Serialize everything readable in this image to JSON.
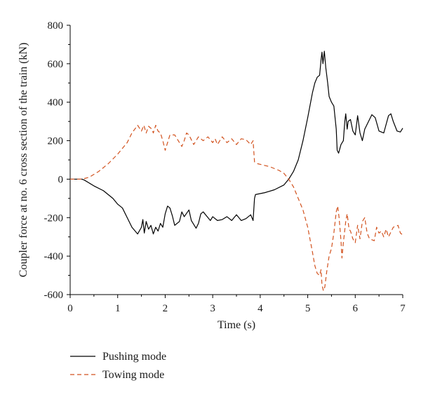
{
  "chart_data": {
    "type": "line",
    "title": "",
    "xlabel": "Time (s)",
    "ylabel": "Coupler force at no. 6 cross section of the train (kN)",
    "xlim": [
      0,
      7
    ],
    "ylim": [
      -600,
      800
    ],
    "xticks": [
      0,
      1,
      2,
      3,
      4,
      5,
      6,
      7
    ],
    "yticks": [
      -600,
      -400,
      -200,
      0,
      200,
      400,
      600,
      800
    ],
    "grid": false,
    "legend_position": "bottom-left",
    "series": [
      {
        "name": "Pushing mode",
        "color": "#000000",
        "dash": "solid",
        "points": [
          [
            0,
            0
          ],
          [
            0.25,
            0
          ],
          [
            0.3,
            -5
          ],
          [
            0.5,
            -35
          ],
          [
            0.7,
            -60
          ],
          [
            0.9,
            -100
          ],
          [
            1.0,
            -130
          ],
          [
            1.1,
            -150
          ],
          [
            1.2,
            -200
          ],
          [
            1.3,
            -250
          ],
          [
            1.42,
            -285
          ],
          [
            1.5,
            -250
          ],
          [
            1.53,
            -210
          ],
          [
            1.56,
            -280
          ],
          [
            1.6,
            -220
          ],
          [
            1.65,
            -260
          ],
          [
            1.7,
            -240
          ],
          [
            1.75,
            -285
          ],
          [
            1.8,
            -250
          ],
          [
            1.85,
            -270
          ],
          [
            1.9,
            -230
          ],
          [
            1.95,
            -250
          ],
          [
            2.0,
            -180
          ],
          [
            2.05,
            -140
          ],
          [
            2.1,
            -150
          ],
          [
            2.15,
            -190
          ],
          [
            2.2,
            -240
          ],
          [
            2.3,
            -220
          ],
          [
            2.35,
            -170
          ],
          [
            2.4,
            -195
          ],
          [
            2.5,
            -160
          ],
          [
            2.55,
            -215
          ],
          [
            2.65,
            -255
          ],
          [
            2.7,
            -230
          ],
          [
            2.75,
            -180
          ],
          [
            2.8,
            -170
          ],
          [
            2.9,
            -200
          ],
          [
            2.95,
            -215
          ],
          [
            3.0,
            -195
          ],
          [
            3.1,
            -215
          ],
          [
            3.2,
            -210
          ],
          [
            3.3,
            -195
          ],
          [
            3.4,
            -215
          ],
          [
            3.5,
            -185
          ],
          [
            3.6,
            -215
          ],
          [
            3.7,
            -205
          ],
          [
            3.8,
            -185
          ],
          [
            3.85,
            -215
          ],
          [
            3.88,
            -100
          ],
          [
            3.9,
            -80
          ],
          [
            4.1,
            -70
          ],
          [
            4.3,
            -55
          ],
          [
            4.5,
            -30
          ],
          [
            4.6,
            0
          ],
          [
            4.7,
            40
          ],
          [
            4.8,
            100
          ],
          [
            4.9,
            200
          ],
          [
            5.0,
            320
          ],
          [
            5.1,
            450
          ],
          [
            5.15,
            500
          ],
          [
            5.2,
            530
          ],
          [
            5.25,
            540
          ],
          [
            5.28,
            620
          ],
          [
            5.3,
            660
          ],
          [
            5.32,
            600
          ],
          [
            5.35,
            665
          ],
          [
            5.38,
            580
          ],
          [
            5.42,
            500
          ],
          [
            5.45,
            430
          ],
          [
            5.5,
            400
          ],
          [
            5.55,
            380
          ],
          [
            5.6,
            260
          ],
          [
            5.62,
            150
          ],
          [
            5.65,
            135
          ],
          [
            5.7,
            180
          ],
          [
            5.75,
            200
          ],
          [
            5.78,
            300
          ],
          [
            5.8,
            340
          ],
          [
            5.83,
            260
          ],
          [
            5.85,
            300
          ],
          [
            5.9,
            310
          ],
          [
            5.95,
            250
          ],
          [
            6.0,
            230
          ],
          [
            6.05,
            330
          ],
          [
            6.1,
            240
          ],
          [
            6.15,
            200
          ],
          [
            6.2,
            260
          ],
          [
            6.3,
            310
          ],
          [
            6.35,
            335
          ],
          [
            6.42,
            320
          ],
          [
            6.5,
            250
          ],
          [
            6.6,
            240
          ],
          [
            6.7,
            330
          ],
          [
            6.75,
            340
          ],
          [
            6.8,
            300
          ],
          [
            6.88,
            250
          ],
          [
            6.95,
            245
          ],
          [
            7.0,
            265
          ]
        ]
      },
      {
        "name": "Towing mode",
        "color": "#d2521e",
        "dash": "dashed",
        "points": [
          [
            0,
            0
          ],
          [
            0.25,
            0
          ],
          [
            0.4,
            10
          ],
          [
            0.6,
            40
          ],
          [
            0.8,
            80
          ],
          [
            1.0,
            130
          ],
          [
            1.1,
            160
          ],
          [
            1.2,
            190
          ],
          [
            1.3,
            240
          ],
          [
            1.42,
            280
          ],
          [
            1.5,
            250
          ],
          [
            1.55,
            280
          ],
          [
            1.6,
            240
          ],
          [
            1.65,
            275
          ],
          [
            1.72,
            260
          ],
          [
            1.75,
            240
          ],
          [
            1.8,
            280
          ],
          [
            1.85,
            250
          ],
          [
            1.9,
            240
          ],
          [
            1.95,
            200
          ],
          [
            2.0,
            150
          ],
          [
            2.05,
            190
          ],
          [
            2.1,
            230
          ],
          [
            2.2,
            230
          ],
          [
            2.3,
            190
          ],
          [
            2.35,
            170
          ],
          [
            2.4,
            200
          ],
          [
            2.45,
            240
          ],
          [
            2.5,
            230
          ],
          [
            2.6,
            180
          ],
          [
            2.7,
            220
          ],
          [
            2.8,
            200
          ],
          [
            2.9,
            220
          ],
          [
            3.0,
            190
          ],
          [
            3.05,
            210
          ],
          [
            3.1,
            180
          ],
          [
            3.2,
            220
          ],
          [
            3.3,
            190
          ],
          [
            3.4,
            210
          ],
          [
            3.5,
            180
          ],
          [
            3.6,
            210
          ],
          [
            3.7,
            205
          ],
          [
            3.8,
            180
          ],
          [
            3.85,
            200
          ],
          [
            3.88,
            90
          ],
          [
            3.95,
            80
          ],
          [
            4.2,
            65
          ],
          [
            4.4,
            45
          ],
          [
            4.5,
            30
          ],
          [
            4.6,
            0
          ],
          [
            4.7,
            -40
          ],
          [
            4.8,
            -100
          ],
          [
            4.9,
            -160
          ],
          [
            5.0,
            -250
          ],
          [
            5.1,
            -380
          ],
          [
            5.15,
            -450
          ],
          [
            5.2,
            -490
          ],
          [
            5.25,
            -500
          ],
          [
            5.28,
            -470
          ],
          [
            5.3,
            -550
          ],
          [
            5.33,
            -580
          ],
          [
            5.36,
            -560
          ],
          [
            5.4,
            -480
          ],
          [
            5.45,
            -400
          ],
          [
            5.5,
            -360
          ],
          [
            5.55,
            -280
          ],
          [
            5.6,
            -170
          ],
          [
            5.63,
            -140
          ],
          [
            5.66,
            -200
          ],
          [
            5.7,
            -320
          ],
          [
            5.72,
            -410
          ],
          [
            5.75,
            -330
          ],
          [
            5.8,
            -220
          ],
          [
            5.83,
            -180
          ],
          [
            5.87,
            -260
          ],
          [
            5.9,
            -270
          ],
          [
            5.95,
            -310
          ],
          [
            6.0,
            -330
          ],
          [
            6.05,
            -240
          ],
          [
            6.1,
            -310
          ],
          [
            6.15,
            -220
          ],
          [
            6.2,
            -200
          ],
          [
            6.25,
            -280
          ],
          [
            6.3,
            -310
          ],
          [
            6.4,
            -320
          ],
          [
            6.45,
            -250
          ],
          [
            6.5,
            -280
          ],
          [
            6.55,
            -270
          ],
          [
            6.6,
            -300
          ],
          [
            6.65,
            -260
          ],
          [
            6.7,
            -300
          ],
          [
            6.8,
            -250
          ],
          [
            6.9,
            -240
          ],
          [
            6.95,
            -280
          ],
          [
            7.0,
            -290
          ]
        ]
      }
    ]
  }
}
